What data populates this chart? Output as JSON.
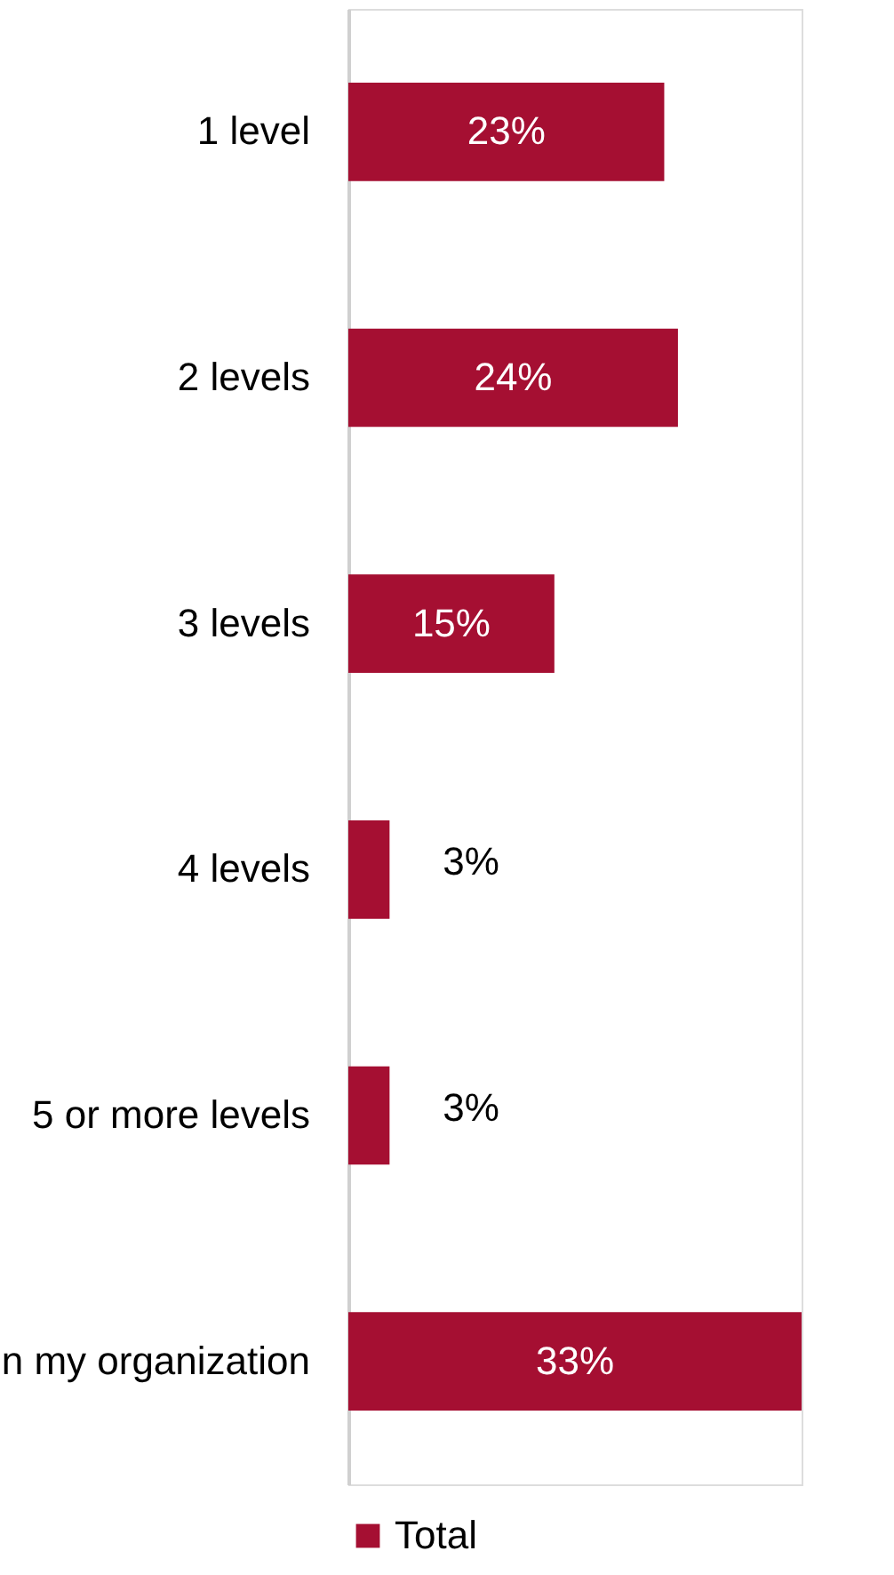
{
  "chart_data": {
    "type": "bar",
    "orientation": "horizontal",
    "xlim": [
      0,
      33
    ],
    "categories": [
      "1 level",
      "2 levels",
      "3 levels",
      "4 levels",
      "5 or more levels",
      "n my organization"
    ],
    "series": [
      {
        "name": "Total",
        "color": "#a50f32",
        "values": [
          23,
          24,
          15,
          3,
          3,
          33
        ],
        "value_labels": [
          "23%",
          "24%",
          "15%",
          "3%",
          "3%",
          "33%"
        ]
      }
    ],
    "legend": "bottom"
  }
}
